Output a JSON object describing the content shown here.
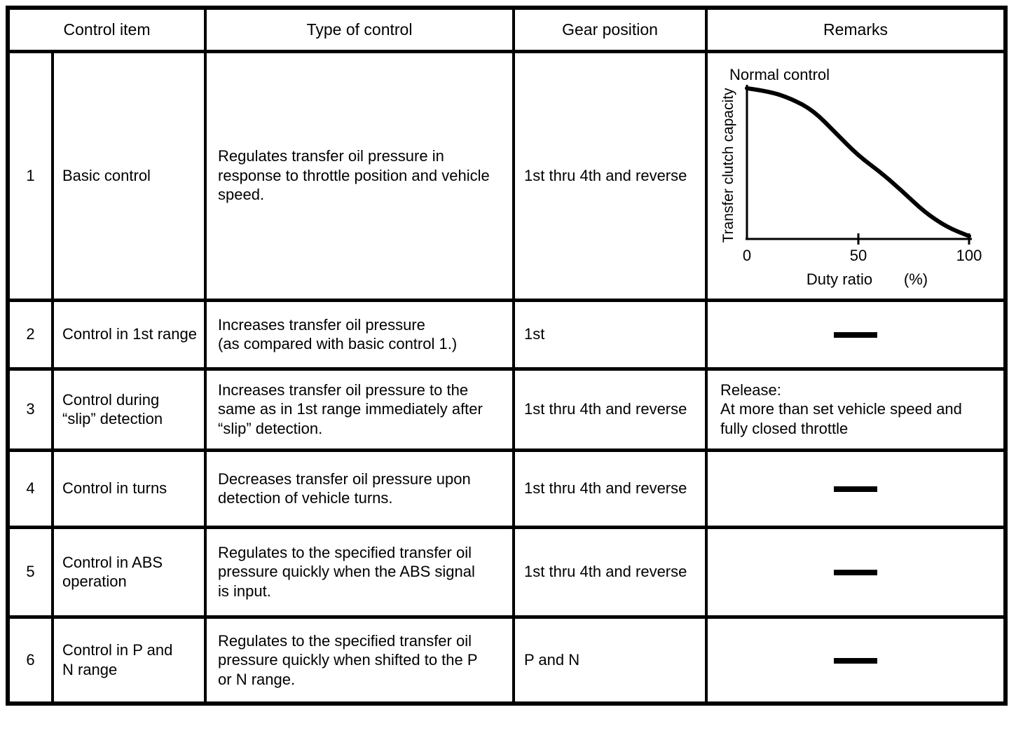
{
  "table": {
    "col_headers": [
      "Control item",
      "Type of control",
      "Gear position",
      "Remarks"
    ],
    "rows": [
      {
        "num": "1",
        "item": "Basic control",
        "type": "Regulates transfer oil pressure in\nresponse to throttle position and vehicle\nspeed.",
        "gear": "1st thru 4th and reverse",
        "remarks": "(chart: Normal control)"
      },
      {
        "num": "2",
        "item": "Control in 1st range",
        "type": "Increases transfer oil pressure\n(as compared with basic control 1.)",
        "gear": "1st",
        "remarks": "—"
      },
      {
        "num": "3",
        "item": "Control during\n“slip” detection",
        "type": "Increases transfer oil pressure to the\nsame as in 1st range immediately after\n“slip” detection.",
        "gear": "1st thru 4th and reverse",
        "remarks": "Release:\nAt more than set vehicle speed and\nfully closed throttle"
      },
      {
        "num": "4",
        "item": "Control in turns",
        "type": "Decreases transfer oil pressure upon\ndetection of vehicle turns.",
        "gear": "1st thru 4th and reverse",
        "remarks": "—"
      },
      {
        "num": "5",
        "item": "Control in ABS\noperation",
        "type": "Regulates to the specified transfer oil\npressure quickly when the ABS signal\nis input.",
        "gear": "1st thru 4th and reverse",
        "remarks": "—"
      },
      {
        "num": "6",
        "item": "Control in P and\nN range",
        "type": "Regulates to the specified transfer oil\npressure quickly when shifted to the P\nor N range.",
        "gear": "P and N",
        "remarks": "—"
      }
    ]
  },
  "chart_data": {
    "type": "line",
    "title": "Normal control",
    "xlabel": "Duty ratio",
    "xunit": "(%)",
    "ylabel": "Transfer clutch capacity",
    "x": [
      0,
      10,
      20,
      30,
      40,
      50,
      60,
      70,
      80,
      90,
      100
    ],
    "y": [
      1.0,
      0.98,
      0.93,
      0.85,
      0.7,
      0.55,
      0.44,
      0.31,
      0.17,
      0.07,
      0.01
    ],
    "xticks": [
      0,
      50,
      100
    ],
    "xlim": [
      0,
      100
    ],
    "ylim": [
      0,
      1
    ],
    "grid": false,
    "legend": "none"
  }
}
